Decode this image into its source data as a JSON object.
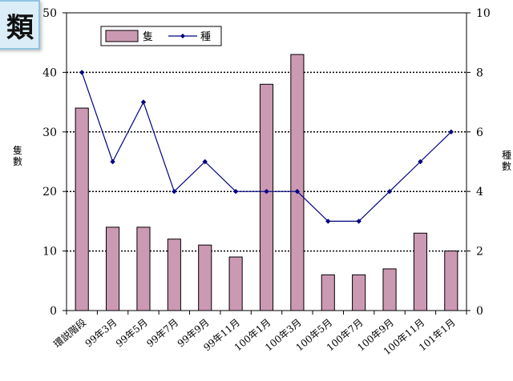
{
  "title_fragment": "類",
  "chart_data": {
    "type": "bar+line",
    "categories": [
      "環説階段",
      "99年3月",
      "99年5月",
      "99年7月",
      "99年9月",
      "99年11月",
      "100年1月",
      "100年3月",
      "100年5月",
      "100年7月",
      "100年9月",
      "100年11月",
      "101年1月"
    ],
    "series": [
      {
        "name": "隻",
        "type": "bar",
        "axis": "left",
        "values": [
          34,
          14,
          14,
          12,
          11,
          9,
          38,
          43,
          6,
          6,
          7,
          13,
          10
        ]
      },
      {
        "name": "種",
        "type": "line",
        "axis": "right",
        "values": [
          8,
          5,
          7,
          4,
          5,
          4,
          4,
          4,
          3,
          3,
          4,
          5,
          6
        ]
      }
    ],
    "ylabel": "隻數",
    "y2label": "種數",
    "ylim": [
      0,
      50
    ],
    "y2lim": [
      0,
      10
    ],
    "yticks": [
      0,
      10,
      20,
      30,
      40,
      50
    ],
    "y2ticks": [
      0,
      2,
      4,
      6,
      8,
      10
    ],
    "grid": "horizontal-dotted",
    "legend": "top-left",
    "colors": {
      "bar_fill": "#cc99b3",
      "bar_stroke": "#000000",
      "line": "#000080",
      "marker": "#000080",
      "grid": "#000000"
    }
  }
}
